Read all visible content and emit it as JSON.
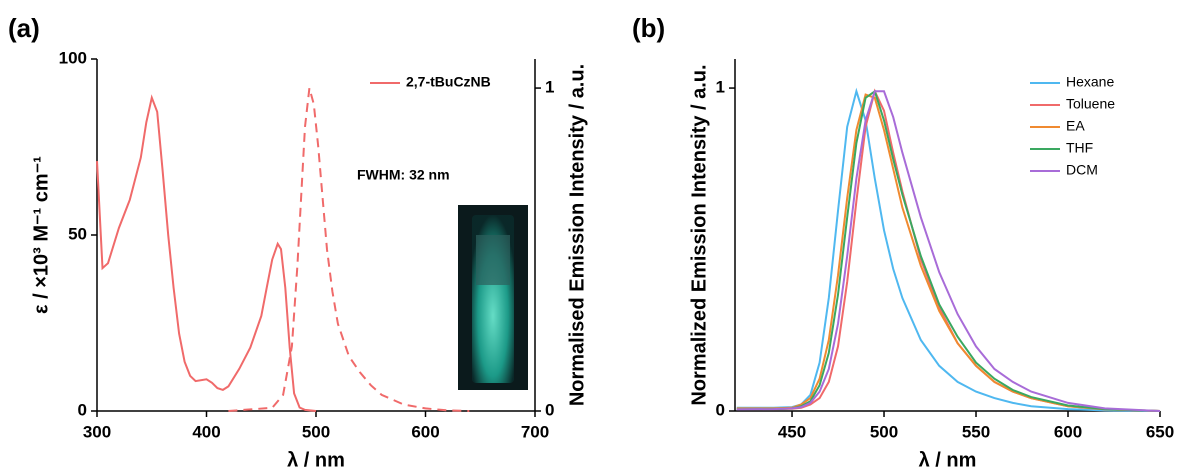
{
  "chart_data": [
    {
      "type": "line",
      "panel_label": "(a)",
      "x_label": "λ / nm",
      "y_label": "ε / ×10³ M⁻¹ cm⁻¹",
      "y2_label": "Normalised Emission Intensity / a.u.",
      "xlim": [
        300,
        700
      ],
      "xticks": [
        300,
        400,
        500,
        600,
        700
      ],
      "ylim": [
        0,
        100
      ],
      "yticks": [
        0,
        50,
        100
      ],
      "y2lim": [
        0,
        1.09
      ],
      "y2ticks": [
        0,
        1
      ],
      "legend": "upper right",
      "annotations": [
        "FWHM: 32 nm"
      ],
      "series": [
        {
          "name": "2,7-tBuCzNB",
          "color": "#f06a6a",
          "line_style": "solid",
          "x": [
            300,
            305,
            310,
            320,
            330,
            340,
            345,
            350,
            355,
            360,
            365,
            370,
            375,
            380,
            385,
            390,
            400,
            405,
            410,
            415,
            420,
            430,
            440,
            450,
            455,
            460,
            465,
            468,
            472,
            476,
            480,
            485,
            490,
            500
          ],
          "values": [
            71,
            40.6,
            42,
            52,
            60,
            72,
            82,
            89,
            85,
            68,
            50,
            35,
            22,
            14,
            10,
            8.5,
            9,
            8,
            6.5,
            6,
            7,
            12,
            18,
            27,
            35,
            43,
            47.5,
            46,
            35,
            18,
            5,
            1,
            0.3,
            0
          ]
        },
        {
          "color": "#f06a6a",
          "line_style": "dashed",
          "axis": "y2",
          "x": [
            420,
            460,
            470,
            478,
            483,
            487,
            490,
            494,
            498,
            502,
            506,
            510,
            515,
            520,
            530,
            540,
            550,
            560,
            570,
            580,
            600,
            620,
            640
          ],
          "values": [
            0,
            0.01,
            0.05,
            0.2,
            0.45,
            0.7,
            0.88,
            1.0,
            0.95,
            0.82,
            0.66,
            0.5,
            0.37,
            0.27,
            0.17,
            0.12,
            0.08,
            0.05,
            0.035,
            0.02,
            0.008,
            0.002,
            0
          ]
        }
      ]
    },
    {
      "type": "line",
      "panel_label": "(b)",
      "x_label": "λ / nm",
      "y_label": "Normalized Emission Intensity / a.u.",
      "xlim": [
        419,
        650
      ],
      "xticks": [
        450,
        500,
        550,
        600,
        650
      ],
      "ylim": [
        0,
        1.09
      ],
      "yticks": [
        0,
        1
      ],
      "legend": "upper right",
      "x": [
        420,
        440,
        450,
        455,
        460,
        465,
        470,
        475,
        480,
        485,
        490,
        495,
        500,
        505,
        510,
        520,
        530,
        540,
        550,
        560,
        570,
        580,
        600,
        620,
        650
      ],
      "series": [
        {
          "name": "Hexane",
          "color": "#4fb8f0",
          "line_style": "solid",
          "values": [
            0.01,
            0.01,
            0.012,
            0.02,
            0.05,
            0.15,
            0.35,
            0.62,
            0.88,
            0.99,
            0.9,
            0.72,
            0.56,
            0.44,
            0.35,
            0.22,
            0.14,
            0.09,
            0.06,
            0.04,
            0.025,
            0.015,
            0.006,
            0.002,
            0
          ]
        },
        {
          "name": "Toluene",
          "color": "#f06a6a",
          "line_style": "solid",
          "values": [
            0.005,
            0.006,
            0.007,
            0.01,
            0.02,
            0.04,
            0.09,
            0.2,
            0.4,
            0.65,
            0.88,
            0.99,
            0.93,
            0.8,
            0.68,
            0.47,
            0.32,
            0.21,
            0.14,
            0.09,
            0.06,
            0.04,
            0.015,
            0.006,
            0
          ]
        },
        {
          "name": "EA",
          "color": "#f08a30",
          "line_style": "solid",
          "values": [
            0.008,
            0.008,
            0.01,
            0.02,
            0.04,
            0.1,
            0.22,
            0.42,
            0.66,
            0.87,
            0.98,
            0.97,
            0.87,
            0.75,
            0.63,
            0.45,
            0.31,
            0.21,
            0.14,
            0.09,
            0.06,
            0.04,
            0.015,
            0.005,
            0
          ]
        },
        {
          "name": "THF",
          "color": "#3aa860",
          "line_style": "solid",
          "values": [
            0.005,
            0.006,
            0.008,
            0.015,
            0.03,
            0.08,
            0.18,
            0.36,
            0.6,
            0.83,
            0.97,
            0.99,
            0.9,
            0.78,
            0.67,
            0.48,
            0.33,
            0.23,
            0.15,
            0.1,
            0.065,
            0.043,
            0.017,
            0.006,
            0
          ]
        },
        {
          "name": "DCM",
          "color": "#a86cd8",
          "line_style": "solid",
          "values": [
            0.005,
            0.006,
            0.008,
            0.012,
            0.025,
            0.06,
            0.13,
            0.27,
            0.48,
            0.72,
            0.9,
            0.99,
            0.99,
            0.91,
            0.8,
            0.6,
            0.43,
            0.3,
            0.2,
            0.13,
            0.09,
            0.06,
            0.025,
            0.008,
            0
          ]
        }
      ]
    }
  ]
}
